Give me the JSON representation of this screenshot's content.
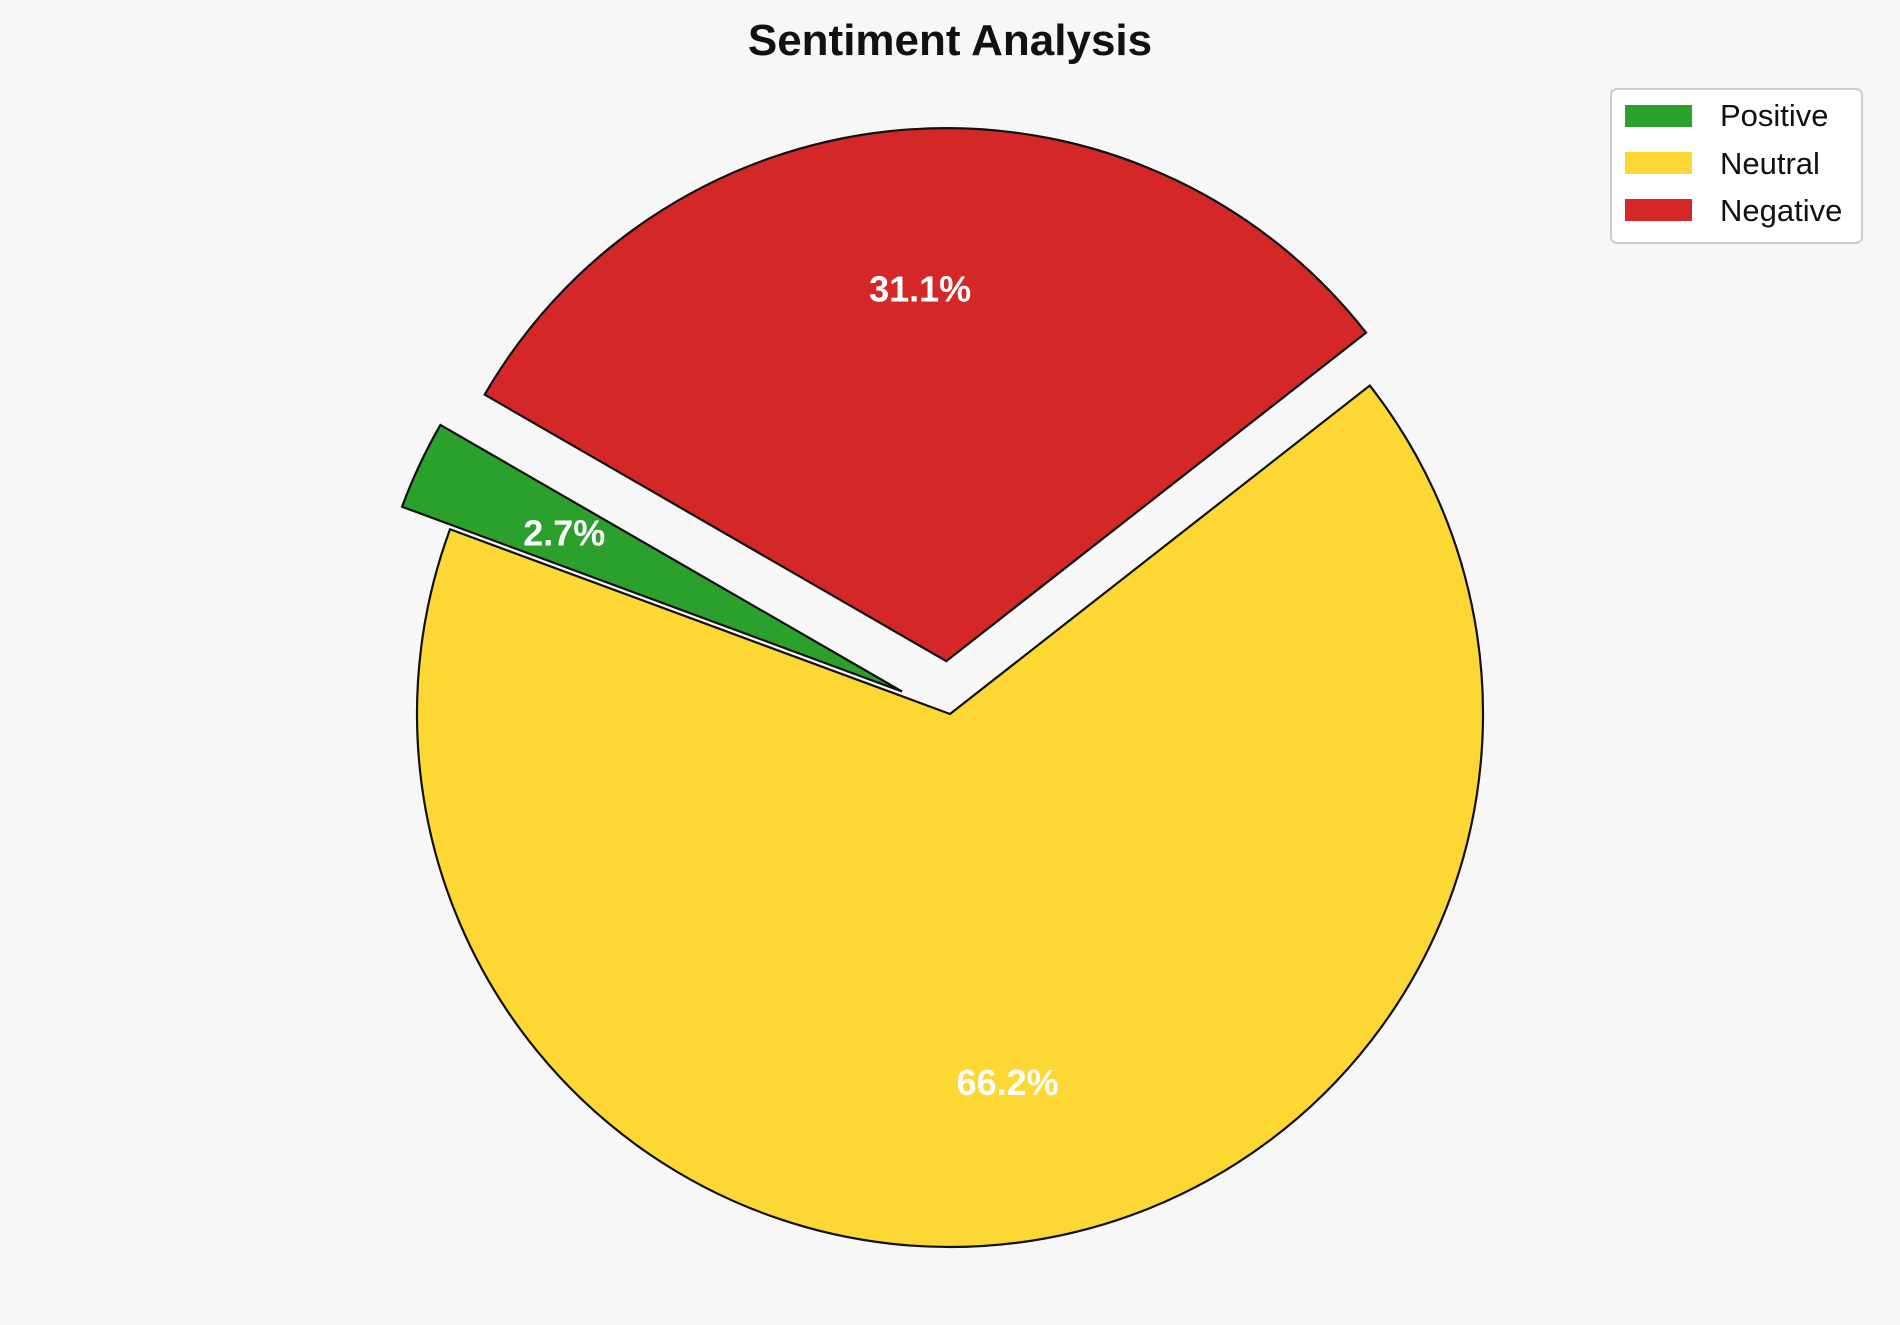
{
  "chart_data": {
    "type": "pie",
    "title": "Sentiment Analysis",
    "categories": [
      "Positive",
      "Neutral",
      "Negative"
    ],
    "values": [
      2.7,
      66.2,
      31.1
    ],
    "labels": [
      "2.7%",
      "66.2%",
      "31.1%"
    ],
    "colors": [
      "#2ca02c",
      "#fdd835",
      "#d32728"
    ],
    "exploded": [
      true,
      false,
      true
    ],
    "legend": {
      "placement": "top-right",
      "entries": [
        "Positive",
        "Neutral",
        "Negative"
      ]
    }
  }
}
